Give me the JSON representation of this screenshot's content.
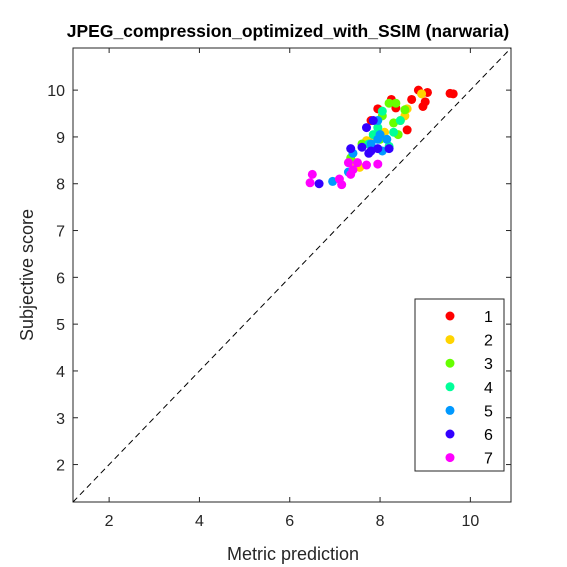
{
  "chart_data": {
    "type": "scatter",
    "title": "JPEG_compression_optimized_with_SSIM (narwaria)",
    "xlabel": "Metric prediction",
    "ylabel": "Subjective score",
    "xlim": [
      1.2,
      10.9
    ],
    "ylim": [
      1.2,
      10.9
    ],
    "x_ticks": [
      2,
      4,
      6,
      8,
      10
    ],
    "y_ticks": [
      2,
      3,
      4,
      5,
      6,
      7,
      8,
      9,
      10
    ],
    "x_tick_labels": [
      "2",
      "4",
      "6",
      "8",
      "10"
    ],
    "y_tick_labels": [
      "2",
      "3",
      "4",
      "5",
      "6",
      "7",
      "8",
      "9",
      "10"
    ],
    "reference_line": "y = x (dashed)",
    "grid": false,
    "legend_position": "bottom-right",
    "series": [
      {
        "name": "1",
        "color": "#ff0000",
        "points": [
          [
            9.55,
            9.93
          ],
          [
            9.62,
            9.92
          ],
          [
            9.05,
            9.95
          ],
          [
            8.85,
            10.0
          ],
          [
            8.7,
            9.8
          ],
          [
            9.0,
            9.75
          ],
          [
            8.95,
            9.65
          ],
          [
            8.6,
            9.15
          ],
          [
            8.25,
            9.8
          ],
          [
            8.35,
            9.62
          ],
          [
            7.95,
            9.6
          ],
          [
            7.8,
            9.35
          ]
        ]
      },
      {
        "name": "2",
        "color": "#ffd400",
        "points": [
          [
            8.92,
            9.92
          ],
          [
            8.6,
            9.6
          ],
          [
            8.55,
            9.45
          ],
          [
            8.45,
            9.35
          ],
          [
            8.1,
            9.1
          ],
          [
            7.85,
            9.0
          ],
          [
            7.7,
            8.92
          ],
          [
            7.55,
            8.35
          ],
          [
            7.45,
            8.45
          ]
        ]
      },
      {
        "name": "3",
        "color": "#66ff00",
        "points": [
          [
            8.2,
            9.72
          ],
          [
            8.35,
            9.72
          ],
          [
            8.55,
            9.58
          ],
          [
            8.3,
            9.3
          ],
          [
            8.05,
            9.45
          ],
          [
            8.4,
            9.05
          ],
          [
            8.0,
            8.95
          ],
          [
            7.6,
            8.85
          ],
          [
            7.35,
            8.55
          ]
        ]
      },
      {
        "name": "4",
        "color": "#00ff99",
        "points": [
          [
            8.05,
            9.55
          ],
          [
            8.45,
            9.35
          ],
          [
            8.3,
            9.1
          ],
          [
            7.95,
            9.2
          ],
          [
            7.85,
            9.05
          ],
          [
            7.75,
            8.85
          ],
          [
            8.2,
            8.8
          ]
        ]
      },
      {
        "name": "5",
        "color": "#0099ff",
        "points": [
          [
            7.95,
            9.35
          ],
          [
            8.0,
            9.05
          ],
          [
            7.8,
            8.85
          ],
          [
            7.95,
            8.95
          ],
          [
            8.05,
            8.7
          ],
          [
            8.15,
            8.95
          ],
          [
            7.4,
            8.65
          ],
          [
            7.3,
            8.25
          ],
          [
            6.95,
            8.05
          ]
        ]
      },
      {
        "name": "6",
        "color": "#3300ff",
        "points": [
          [
            7.85,
            9.35
          ],
          [
            7.7,
            9.2
          ],
          [
            7.75,
            8.65
          ],
          [
            7.8,
            8.7
          ],
          [
            7.95,
            8.75
          ],
          [
            8.2,
            8.75
          ],
          [
            7.35,
            8.75
          ],
          [
            7.6,
            8.78
          ],
          [
            6.65,
            8.0
          ]
        ]
      },
      {
        "name": "7",
        "color": "#ff00ff",
        "points": [
          [
            6.5,
            8.2
          ],
          [
            6.45,
            8.02
          ],
          [
            7.1,
            8.1
          ],
          [
            7.15,
            7.98
          ],
          [
            7.3,
            8.45
          ],
          [
            7.35,
            8.2
          ],
          [
            7.5,
            8.45
          ],
          [
            7.7,
            8.4
          ],
          [
            7.95,
            8.42
          ],
          [
            7.4,
            8.3
          ]
        ]
      }
    ]
  }
}
